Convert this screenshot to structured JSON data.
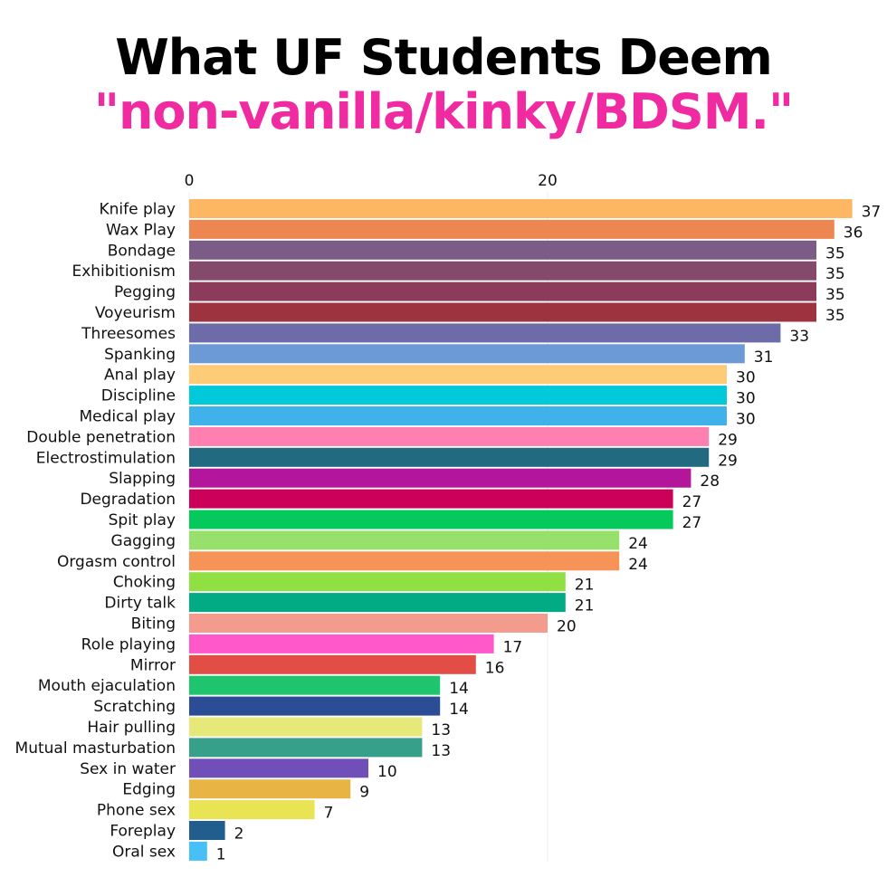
{
  "title_line1": "What UF Students Deem",
  "title_line2": "\"non-vanilla/kinky/BDSM.\"",
  "chart_data": {
    "type": "bar",
    "orientation": "horizontal",
    "xticks": [
      0,
      20
    ],
    "xlim": [
      0,
      37
    ],
    "categories": [
      "Knife play",
      "Wax Play",
      "Bondage",
      "Exhibitionism",
      "Pegging",
      "Voyeurism",
      "Threesomes",
      "Spanking",
      "Anal play",
      "Discipline",
      "Medical play",
      "Double penetration",
      "Electrostimulation",
      "Slapping",
      "Degradation",
      "Spit play",
      "Gagging",
      "Orgasm control",
      "Choking",
      "Dirty talk",
      "Biting",
      "Role playing",
      "Mirror",
      "Mouth ejaculation",
      "Scratching",
      "Hair pulling",
      "Mutual masturbation",
      "Sex in water",
      "Edging",
      "Phone sex",
      "Foreplay",
      "Oral sex"
    ],
    "values": [
      37,
      36,
      35,
      35,
      35,
      35,
      33,
      31,
      30,
      30,
      30,
      29,
      29,
      28,
      27,
      27,
      24,
      24,
      21,
      21,
      20,
      17,
      16,
      14,
      14,
      13,
      13,
      10,
      9,
      7,
      2,
      1
    ],
    "colors": [
      "#fdb763",
      "#ee8652",
      "#7b5c86",
      "#834a6c",
      "#8c3b5a",
      "#9e3340",
      "#6e6ca8",
      "#6b9ad6",
      "#fecb76",
      "#00c9db",
      "#3fb2ec",
      "#fe7fb0",
      "#216a80",
      "#b3169a",
      "#cc0059",
      "#06c95c",
      "#98e06c",
      "#f69356",
      "#90e044",
      "#02ab83",
      "#f39c8e",
      "#ff58c9",
      "#e24e46",
      "#1ec56e",
      "#2b4d96",
      "#e6e87a",
      "#36a08b",
      "#714fb8",
      "#e8b444",
      "#e8e454",
      "#215e8e",
      "#46c0f6"
    ]
  }
}
